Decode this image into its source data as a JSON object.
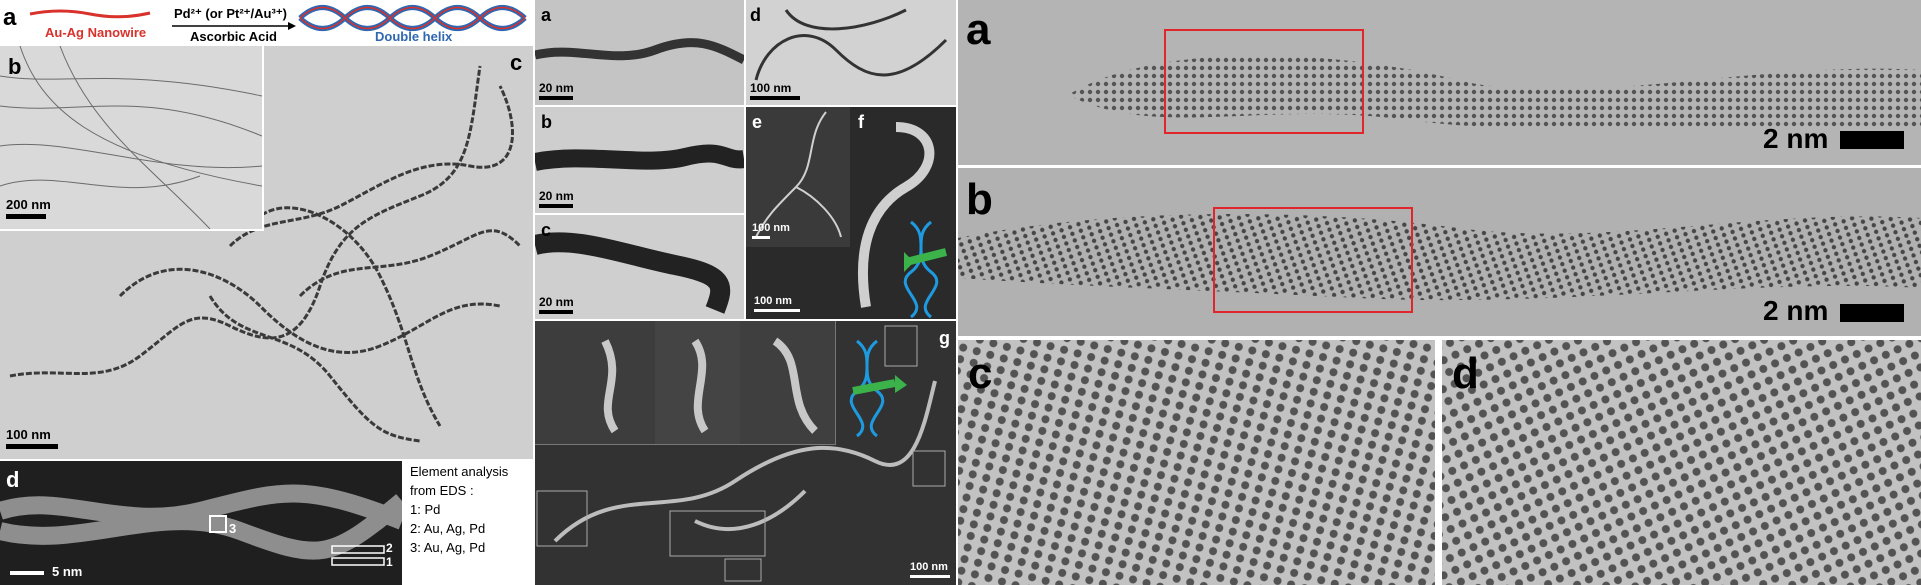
{
  "left": {
    "panel_a": {
      "label": "a",
      "nanowire_caption": "Au-Ag Nanowire",
      "reagent_line1": "Pd²⁺ (or Pt²⁺/Au³⁺)",
      "reagent_line2": "Ascorbic Acid",
      "product_caption": "Double helix"
    },
    "panel_b": {
      "label": "b",
      "scalebar": "200 nm"
    },
    "panel_c": {
      "label": "c",
      "scalebar": "100 nm"
    },
    "panel_d": {
      "label": "d",
      "scalebar": "5 nm",
      "box_labels": [
        "3",
        "2",
        "1"
      ],
      "eds_title_line1": "Element analysis",
      "eds_title_line2": "from EDS :",
      "eds_items": [
        "1: Pd",
        "2: Au, Ag, Pd",
        "3: Au, Ag, Pd"
      ]
    }
  },
  "middle": {
    "a": {
      "label": "a",
      "scalebar": "20 nm"
    },
    "b": {
      "label": "b",
      "scalebar": "20 nm"
    },
    "c": {
      "label": "c",
      "scalebar": "20 nm"
    },
    "d": {
      "label": "d",
      "scalebar": "100 nm"
    },
    "e": {
      "label": "e",
      "scalebar": "100 nm"
    },
    "f": {
      "label": "f",
      "scalebar": "100 nm"
    },
    "g": {
      "label": "g",
      "scalebar": "100 nm"
    }
  },
  "right": {
    "a": {
      "label": "a",
      "scalebar": "2 nm"
    },
    "b": {
      "label": "b",
      "scalebar": "2 nm"
    },
    "c": {
      "label": "c"
    },
    "d": {
      "label": "d"
    }
  },
  "colors": {
    "nanowire_red": "#d9312b",
    "helix_blue": "#2f67b1",
    "dna_blue": "#1e9be0",
    "arrow_green": "#3bb34a",
    "roi_red": "#e0262b"
  }
}
